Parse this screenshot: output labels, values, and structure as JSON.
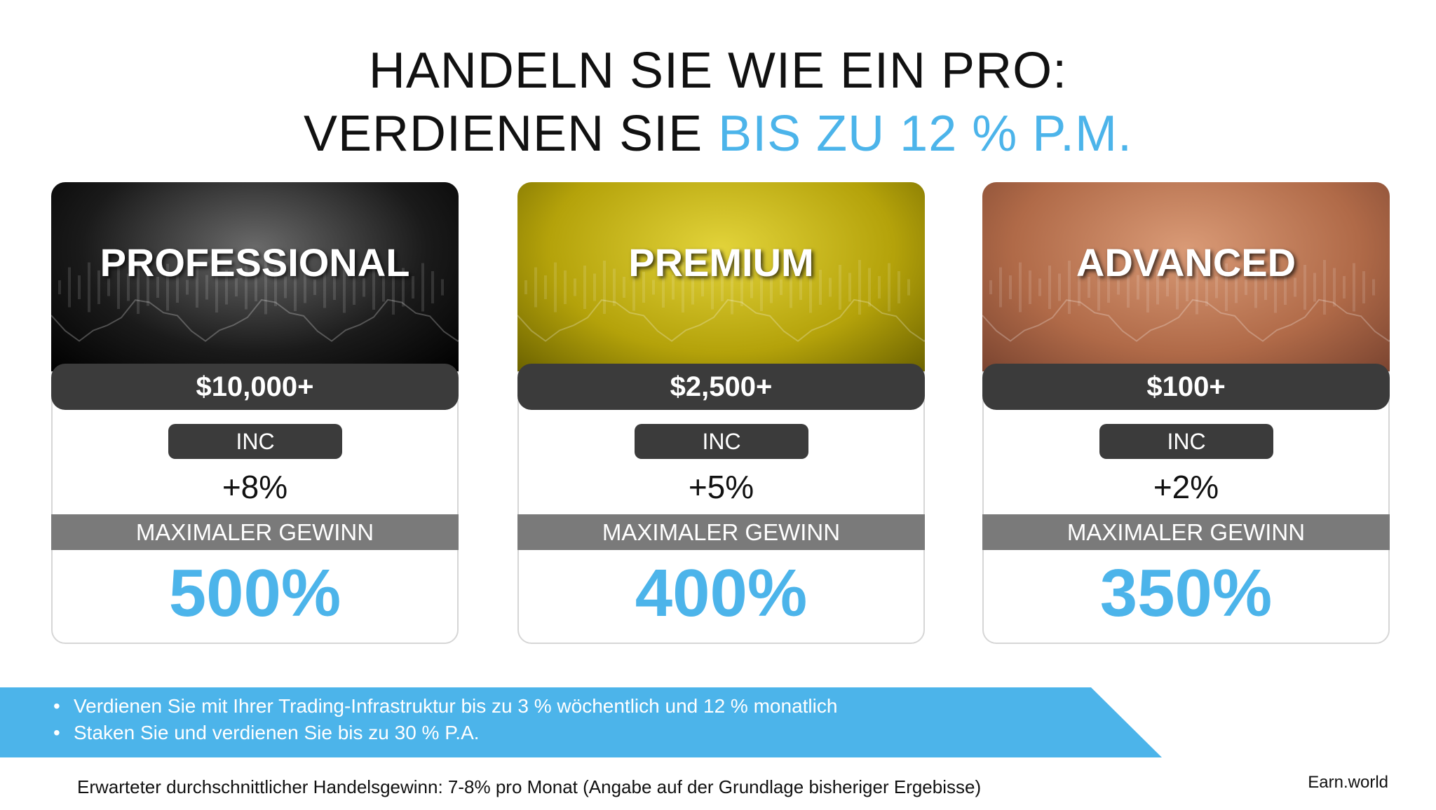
{
  "header": {
    "title_line1": "HANDELN SIE WIE EIN PRO:",
    "title_line2_prefix": "VERDIENEN SIE",
    "title_line2_highlight": "BIS ZU 12 % P.M."
  },
  "cards": [
    {
      "name": "PROFESSIONAL",
      "price": "$10,000+",
      "inc_label": "INC",
      "inc_value": "+8%",
      "max_label": "MAXIMALER GEWINN",
      "max_value": "500%"
    },
    {
      "name": "PREMIUM",
      "price": "$2,500+",
      "inc_label": "INC",
      "inc_value": "+5%",
      "max_label": "MAXIMALER GEWINN",
      "max_value": "400%"
    },
    {
      "name": "ADVANCED",
      "price": "$100+",
      "inc_label": "INC",
      "inc_value": "+2%",
      "max_label": "MAXIMALER GEWINN",
      "max_value": "350%"
    }
  ],
  "bullets": [
    "Verdienen Sie mit Ihrer Trading-Infrastruktur bis zu 3 % wöchentlich und 12 % monatlich",
    "Staken Sie und verdienen Sie bis zu 30 % P.A."
  ],
  "footnote": "Erwarteter durchschnittlicher Handelsgewinn: 7-8% pro Monat (Angabe auf der Grundlage bisheriger Ergebisse)",
  "brand": "Earn.world"
}
